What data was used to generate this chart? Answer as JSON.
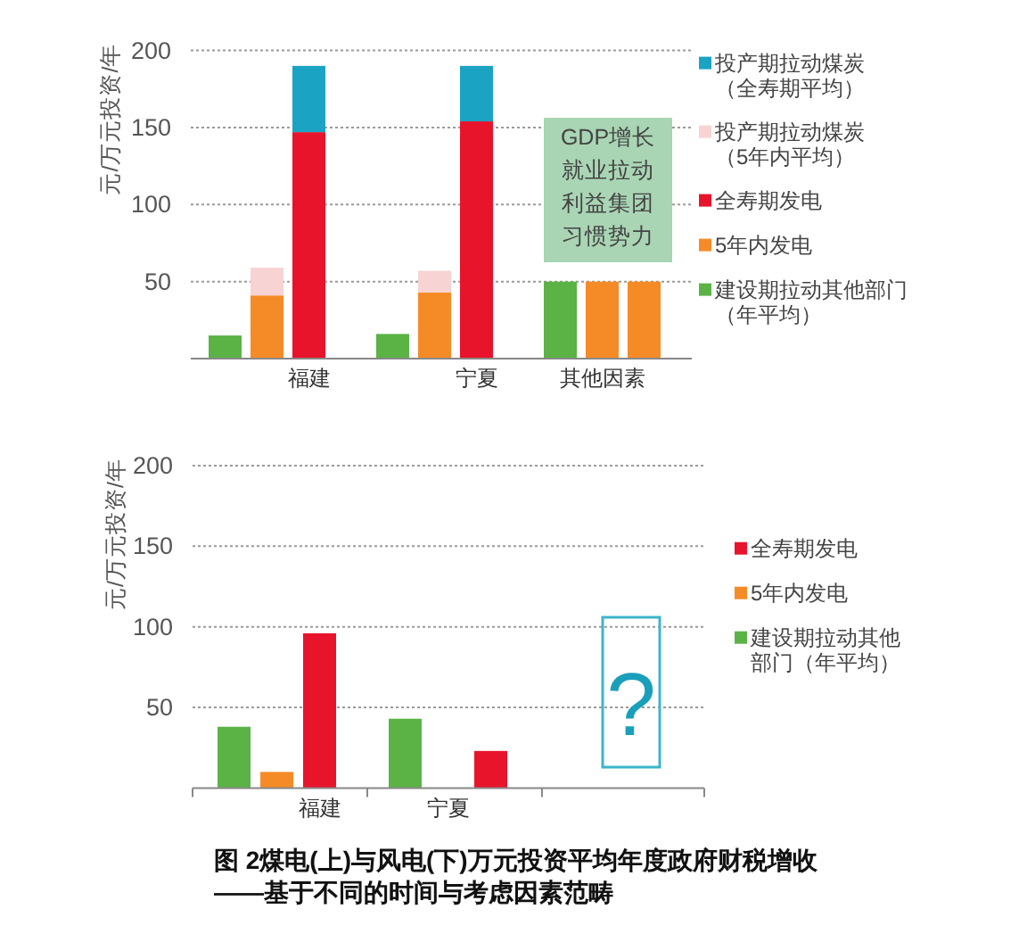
{
  "chart_data": [
    {
      "type": "bar",
      "ylabel": "元/万元投资/年",
      "categories": [
        null,
        null,
        "福建",
        null,
        null,
        null,
        "宁夏",
        null,
        null,
        "其他因素",
        null
      ],
      "stacked": true,
      "series": [
        {
          "name": "建设期拉动其他部门（年平均）",
          "color": "#5bb345",
          "values": [
            15,
            null,
            null,
            null,
            16,
            null,
            null,
            null,
            50,
            null,
            null
          ]
        },
        {
          "name": "5年内发电",
          "color": "#f58b27",
          "values": [
            null,
            41,
            null,
            null,
            null,
            43,
            null,
            null,
            null,
            50,
            50
          ]
        },
        {
          "name": "全寿期发电",
          "color": "#e8142b",
          "values": [
            null,
            null,
            147,
            null,
            null,
            null,
            154,
            null,
            null,
            null,
            null
          ]
        },
        {
          "name": "投产期拉动煤炭（5年内平均）",
          "color": "#f8d3d3",
          "values": [
            null,
            18,
            null,
            null,
            null,
            14,
            null,
            null,
            null,
            null,
            null
          ]
        },
        {
          "name": "投产期拉动煤炭（全寿期平均）",
          "color": "#1ba3c4",
          "values": [
            null,
            null,
            43,
            null,
            null,
            null,
            36,
            null,
            null,
            null,
            null
          ]
        }
      ],
      "ylim": [
        0,
        200
      ],
      "yticks": [
        50,
        100,
        150,
        200
      ],
      "grid": "y",
      "legend": "top right",
      "annotations": [
        "GDP增长就业拉动利益集团习惯势力"
      ]
    },
    {
      "type": "bar",
      "ylabel": "元/万元投资/年",
      "categories": [
        null,
        null,
        "福建",
        null,
        null,
        "宁夏",
        null,
        null,
        null,
        null,
        null
      ],
      "series": [
        {
          "name": "建设期拉动其他部门（年平均）",
          "color": "#5bb345",
          "values": [
            38,
            null,
            null,
            null,
            43,
            null,
            null,
            null,
            null,
            null,
            null
          ]
        },
        {
          "name": "5年内发电",
          "color": "#f58b27",
          "values": [
            null,
            10,
            null,
            null,
            null,
            null,
            null,
            null,
            null,
            null,
            null
          ]
        },
        {
          "name": "全寿期发电",
          "color": "#e8142b",
          "values": [
            null,
            null,
            96,
            null,
            null,
            null,
            23,
            null,
            null,
            null,
            null
          ]
        }
      ],
      "ylim": [
        0,
        200
      ],
      "yticks": [
        50,
        100,
        150,
        200
      ],
      "grid": "y",
      "legend": "right",
      "annotations": [
        "?",
        "图 2煤电(上)与风电(下)万元投资平均年度政府财税增收——基于不同的时间与考虑因素范畴"
      ]
    }
  ]
}
